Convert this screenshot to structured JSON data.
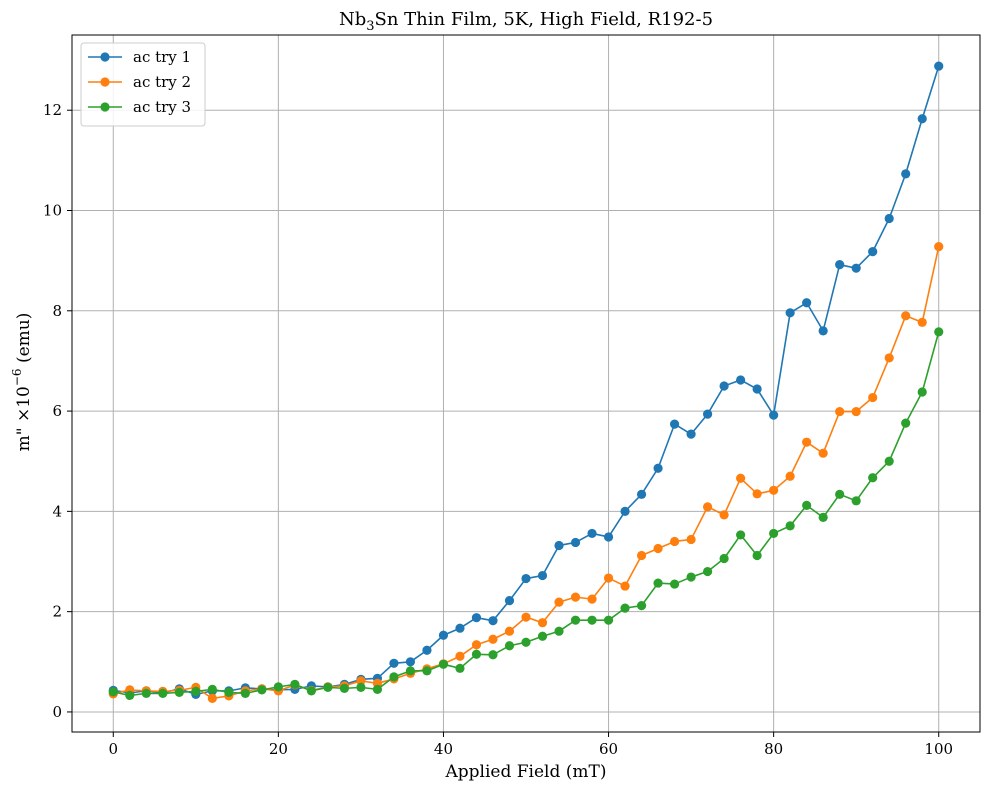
{
  "chart_data": {
    "type": "line",
    "title": "Nb3Sn Thin Film, 5K, High Field, R192-5",
    "title_parts": {
      "pre": "Nb",
      "sub": "3",
      "post": "Sn Thin Film, 5K, High Field, R192-5"
    },
    "xlabel": "Applied Field (mT)",
    "ylabel": "m\" ×10",
    "ylabel_parts": {
      "pre": "m\" ×10",
      "sup": "−6",
      "post": " (emu)"
    },
    "xlim": [
      -5,
      105
    ],
    "ylim": [
      -0.4,
      13.5
    ],
    "xticks": [
      0,
      20,
      40,
      60,
      80,
      100
    ],
    "yticks": [
      0,
      2,
      4,
      6,
      8,
      10,
      12
    ],
    "grid": true,
    "legend_position": "top-left",
    "markers": "circle",
    "x": [
      0,
      2,
      4,
      6,
      8,
      10,
      12,
      14,
      16,
      18,
      20,
      22,
      24,
      26,
      28,
      30,
      32,
      34,
      36,
      38,
      40,
      42,
      44,
      46,
      48,
      50,
      52,
      54,
      56,
      58,
      60,
      62,
      64,
      66,
      68,
      70,
      72,
      74,
      76,
      78,
      80,
      82,
      84,
      86,
      88,
      90,
      92,
      94,
      96,
      98,
      100
    ],
    "series": [
      {
        "name": "ac try 1",
        "color": "#1f77b4",
        "values": [
          0.43,
          0.38,
          0.42,
          0.38,
          0.46,
          0.35,
          0.42,
          0.42,
          0.48,
          0.46,
          0.44,
          0.45,
          0.52,
          0.5,
          0.55,
          0.65,
          0.67,
          0.97,
          1.0,
          1.23,
          1.53,
          1.67,
          1.88,
          1.82,
          2.22,
          2.66,
          2.72,
          3.32,
          3.38,
          3.56,
          3.49,
          4.0,
          4.34,
          4.86,
          5.74,
          5.54,
          5.94,
          6.5,
          6.62,
          6.44,
          5.92,
          7.96,
          8.16,
          7.6,
          8.92,
          8.85,
          9.18,
          9.84,
          10.73,
          11.83,
          12.88
        ]
      },
      {
        "name": "ac try 2",
        "color": "#ff7f0e",
        "values": [
          0.36,
          0.44,
          0.42,
          0.41,
          0.43,
          0.49,
          0.27,
          0.32,
          0.42,
          0.46,
          0.42,
          0.54,
          0.43,
          0.5,
          0.52,
          0.62,
          0.57,
          0.66,
          0.77,
          0.86,
          0.96,
          1.11,
          1.34,
          1.45,
          1.61,
          1.89,
          1.78,
          2.19,
          2.29,
          2.25,
          2.67,
          2.51,
          3.12,
          3.26,
          3.4,
          3.44,
          4.09,
          3.93,
          4.66,
          4.35,
          4.42,
          4.7,
          5.38,
          5.16,
          5.99,
          5.99,
          6.27,
          7.06,
          7.9,
          7.77,
          9.28
        ]
      },
      {
        "name": "ac try 3",
        "color": "#2ca02c",
        "values": [
          0.4,
          0.33,
          0.37,
          0.37,
          0.39,
          0.41,
          0.45,
          0.39,
          0.37,
          0.44,
          0.5,
          0.55,
          0.42,
          0.49,
          0.47,
          0.49,
          0.45,
          0.7,
          0.82,
          0.82,
          0.95,
          0.87,
          1.15,
          1.14,
          1.32,
          1.39,
          1.51,
          1.61,
          1.83,
          1.83,
          1.83,
          2.07,
          2.12,
          2.57,
          2.55,
          2.69,
          2.8,
          3.06,
          3.53,
          3.12,
          3.56,
          3.71,
          4.12,
          3.88,
          4.34,
          4.21,
          4.67,
          5.0,
          5.76,
          6.38,
          7.58
        ]
      }
    ]
  }
}
